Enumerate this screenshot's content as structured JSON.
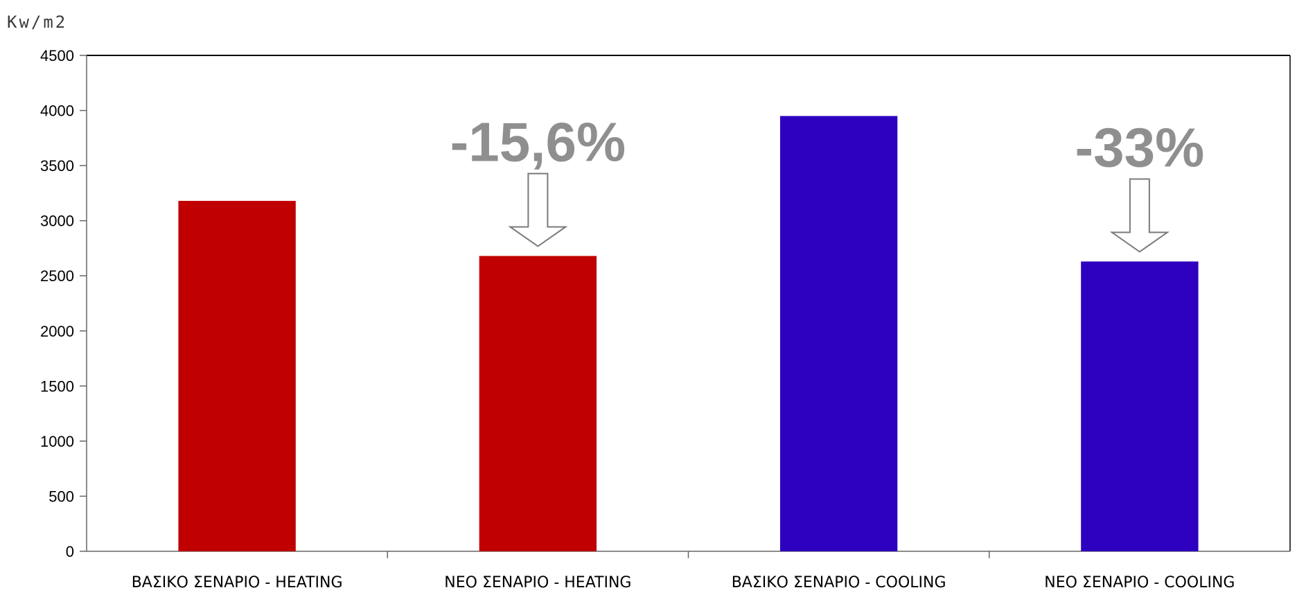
{
  "chart_data": {
    "type": "bar",
    "unit_label": "Kw/m2",
    "categories": [
      "ΒΑΣΙΚΟ ΣΕΝΑΡΙΟ - HEATING",
      "ΝΕΟ ΣΕΝΑΡΙΟ - HEATING",
      "ΒΑΣΙΚΟ ΣΕΝΑΡΙΟ - COOLING",
      "ΝΕΟ ΣΕΝΑΡΙΟ - COOLING"
    ],
    "values": [
      3180,
      2680,
      3950,
      2630
    ],
    "colors": [
      "#c00000",
      "#c00000",
      "#2e00c0",
      "#2e00c0"
    ],
    "ylim": [
      0,
      4500
    ],
    "yticks": [
      "0",
      "500",
      "1000",
      "1500",
      "2000",
      "2500",
      "3000",
      "3500",
      "4000",
      "4500"
    ],
    "grid": false,
    "legend": "none",
    "annotations": [
      {
        "text": "-15,6%",
        "category_index": 1
      },
      {
        "text": "-33%",
        "category_index": 3
      }
    ]
  }
}
